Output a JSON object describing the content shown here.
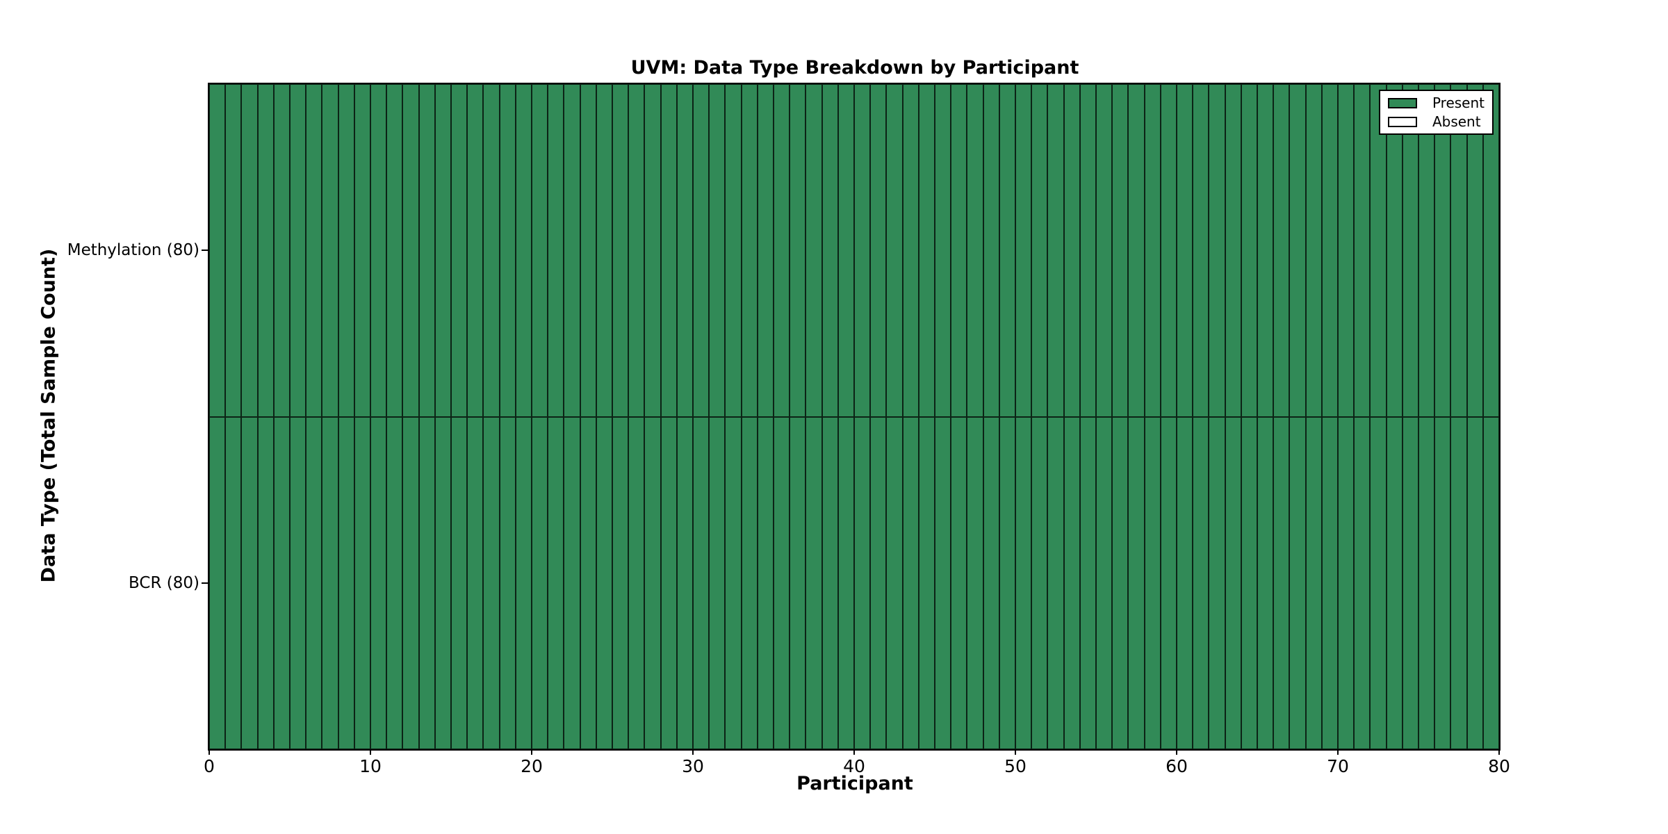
{
  "chart_data": {
    "type": "heatmap",
    "title": "UVM: Data Type Breakdown by Participant",
    "xlabel": "Participant",
    "ylabel": "Data Type (Total Sample Count)",
    "xlim": [
      0,
      80
    ],
    "x_ticks": [
      0,
      10,
      20,
      30,
      40,
      50,
      60,
      70,
      80
    ],
    "n_participants": 80,
    "grid": false,
    "legend": {
      "position": "upper-right",
      "entries": [
        {
          "label": "Present",
          "value": 1,
          "color": "#318a57"
        },
        {
          "label": "Absent",
          "value": 0,
          "color": "#ffffff"
        }
      ]
    },
    "colors": {
      "present": "#318a57",
      "absent": "#ffffff",
      "cell_edge": "#0d2b1a",
      "frame": "#000000",
      "background": "#ffffff"
    },
    "rows": [
      {
        "label": "Methylation (80)",
        "data_type": "Methylation",
        "total_sample_count": 80,
        "present_count": 80,
        "values": [
          1,
          1,
          1,
          1,
          1,
          1,
          1,
          1,
          1,
          1,
          1,
          1,
          1,
          1,
          1,
          1,
          1,
          1,
          1,
          1,
          1,
          1,
          1,
          1,
          1,
          1,
          1,
          1,
          1,
          1,
          1,
          1,
          1,
          1,
          1,
          1,
          1,
          1,
          1,
          1,
          1,
          1,
          1,
          1,
          1,
          1,
          1,
          1,
          1,
          1,
          1,
          1,
          1,
          1,
          1,
          1,
          1,
          1,
          1,
          1,
          1,
          1,
          1,
          1,
          1,
          1,
          1,
          1,
          1,
          1,
          1,
          1,
          1,
          1,
          1,
          1,
          1,
          1,
          1,
          1
        ]
      },
      {
        "label": "BCR (80)",
        "data_type": "BCR",
        "total_sample_count": 80,
        "present_count": 80,
        "values": [
          1,
          1,
          1,
          1,
          1,
          1,
          1,
          1,
          1,
          1,
          1,
          1,
          1,
          1,
          1,
          1,
          1,
          1,
          1,
          1,
          1,
          1,
          1,
          1,
          1,
          1,
          1,
          1,
          1,
          1,
          1,
          1,
          1,
          1,
          1,
          1,
          1,
          1,
          1,
          1,
          1,
          1,
          1,
          1,
          1,
          1,
          1,
          1,
          1,
          1,
          1,
          1,
          1,
          1,
          1,
          1,
          1,
          1,
          1,
          1,
          1,
          1,
          1,
          1,
          1,
          1,
          1,
          1,
          1,
          1,
          1,
          1,
          1,
          1,
          1,
          1,
          1,
          1,
          1,
          1
        ]
      }
    ]
  }
}
